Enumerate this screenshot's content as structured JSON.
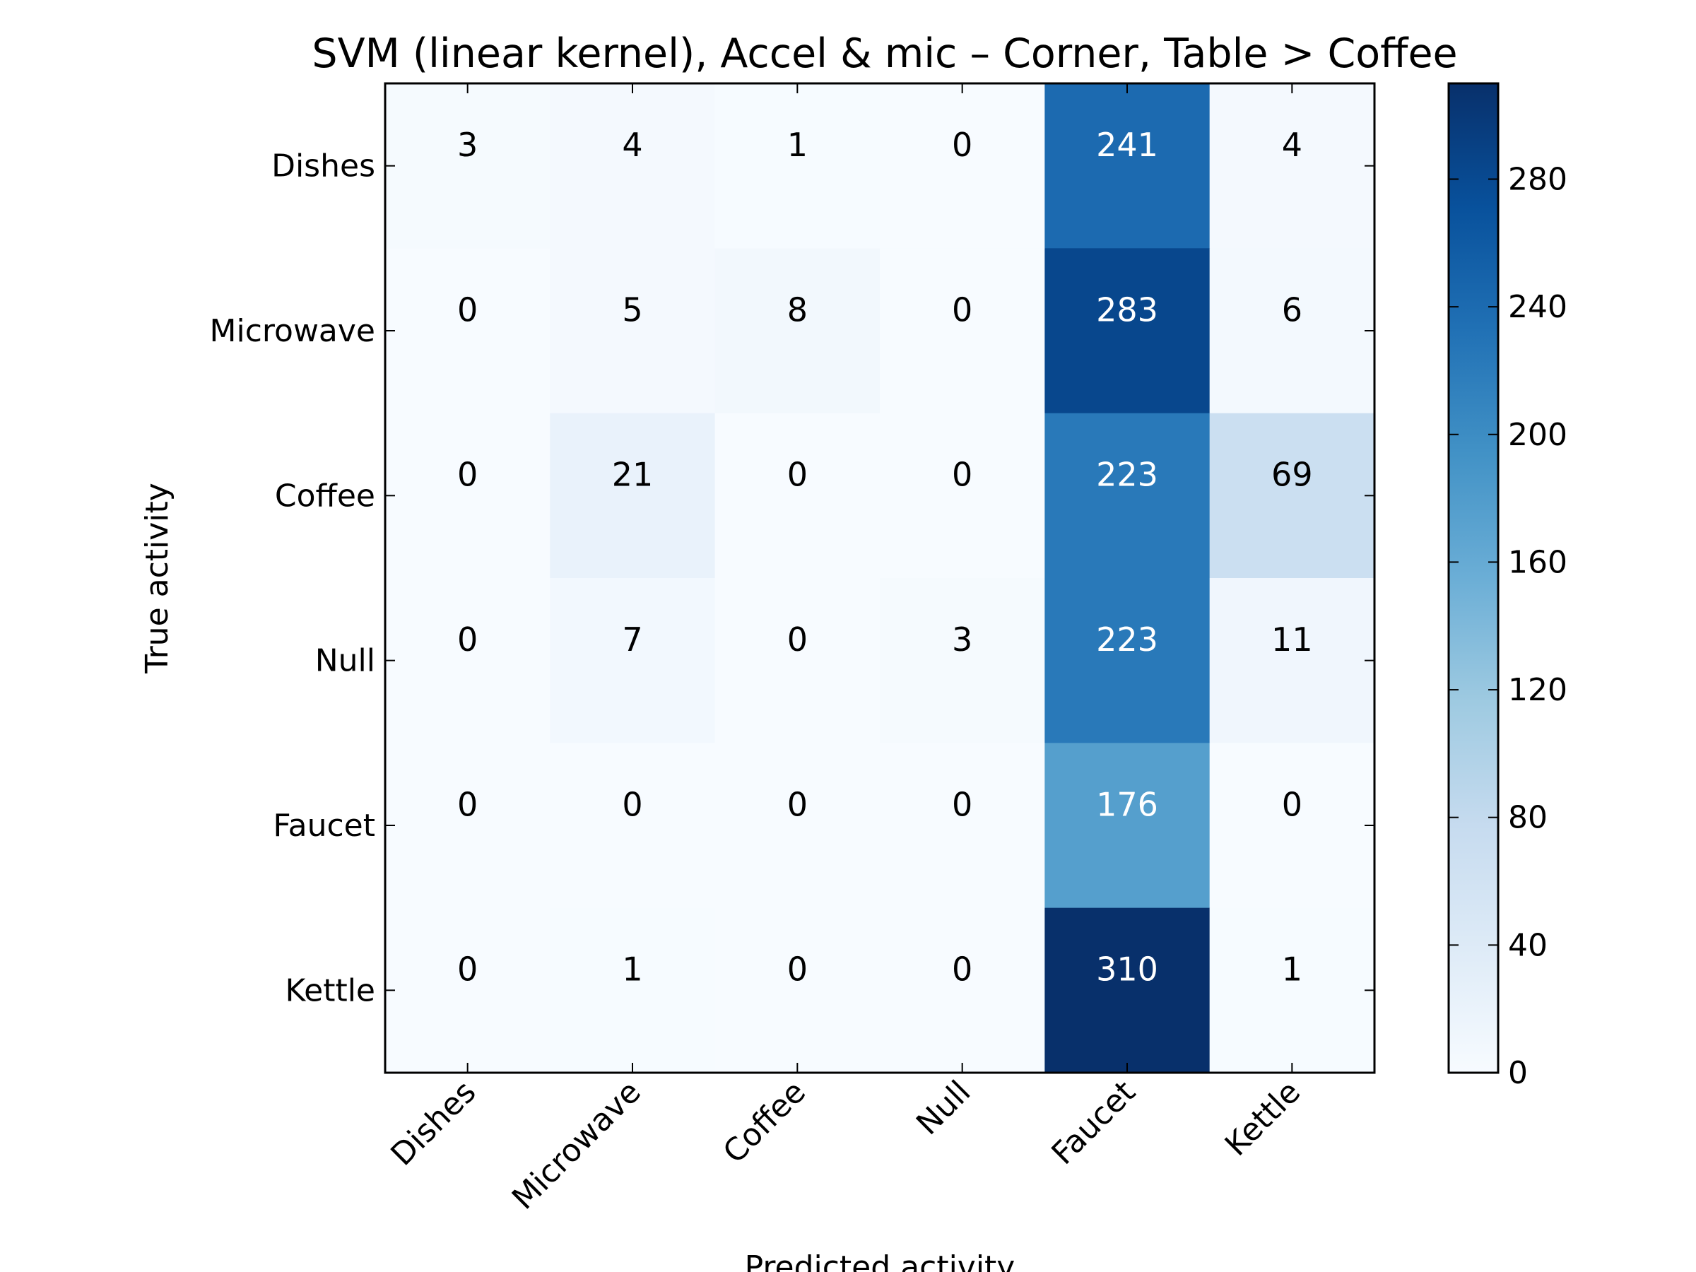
{
  "chart_data": {
    "type": "heatmap",
    "title": "SVM (linear kernel), Accel & mic – Corner, Table > Coffee",
    "xlabel": "Predicted activity",
    "ylabel": "True activity",
    "x_categories": [
      "Dishes",
      "Microwave",
      "Coffee",
      "Null",
      "Faucet",
      "Kettle"
    ],
    "y_categories": [
      "Dishes",
      "Microwave",
      "Coffee",
      "Null",
      "Faucet",
      "Kettle"
    ],
    "values": [
      [
        3,
        4,
        1,
        0,
        241,
        4
      ],
      [
        0,
        5,
        8,
        0,
        283,
        6
      ],
      [
        0,
        21,
        0,
        0,
        223,
        69
      ],
      [
        0,
        7,
        0,
        3,
        223,
        11
      ],
      [
        0,
        0,
        0,
        0,
        176,
        0
      ],
      [
        0,
        1,
        0,
        0,
        310,
        1
      ]
    ],
    "colorscale": "Blues",
    "color_range": [
      0,
      310
    ],
    "colorbar_ticks": [
      0,
      40,
      80,
      120,
      160,
      200,
      240,
      280
    ]
  }
}
